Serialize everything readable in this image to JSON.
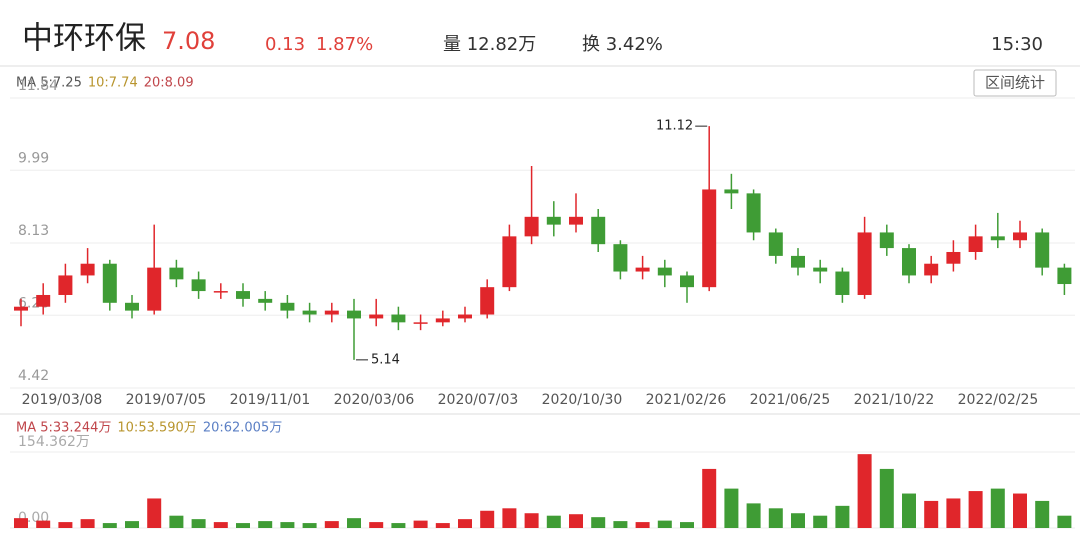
{
  "header": {
    "name": "中环环保",
    "price": "7.08",
    "change": "0.13",
    "change_pct": "1.87%",
    "volume": "量 12.82万",
    "turnover": "换 3.42%",
    "time": "15:30",
    "button": "区间统计"
  },
  "chart_data": [
    {
      "type": "candlestick",
      "legend": [
        "MA 5:7.25",
        "10:7.74",
        "20:8.09"
      ],
      "legend_colors": [
        "#555555",
        "#b8952e",
        "#c0464b"
      ],
      "up_color": "#e0262b",
      "down_color": "#3f9c35",
      "ylim": [
        4.42,
        11.84
      ],
      "yticks": [
        4.42,
        6.28,
        8.13,
        9.99,
        11.84
      ],
      "xlabels": [
        "2019/03/08",
        "2019/07/05",
        "2019/11/01",
        "2020/03/06",
        "2020/07/03",
        "2020/10/30",
        "2021/02/26",
        "2021/06/25",
        "2021/10/22",
        "2022/02/25"
      ],
      "open": [
        6.4,
        6.5,
        6.8,
        7.3,
        7.6,
        6.6,
        6.4,
        7.5,
        7.2,
        6.9,
        6.9,
        6.7,
        6.6,
        6.4,
        6.3,
        6.4,
        6.2,
        6.3,
        6.1,
        6.1,
        6.2,
        6.3,
        7.0,
        8.3,
        8.8,
        8.6,
        8.8,
        8.1,
        7.4,
        7.5,
        7.3,
        7.0,
        9.5,
        9.4,
        8.4,
        7.8,
        7.5,
        7.4,
        6.8,
        8.4,
        8.0,
        7.3,
        7.6,
        7.9,
        8.3,
        8.2,
        8.4,
        7.5
      ],
      "high": [
        6.7,
        7.1,
        7.6,
        8.0,
        7.7,
        6.8,
        8.6,
        7.7,
        7.4,
        7.1,
        7.1,
        6.9,
        6.8,
        6.6,
        6.6,
        6.7,
        6.7,
        6.5,
        6.3,
        6.4,
        6.5,
        7.2,
        8.6,
        10.1,
        9.2,
        9.4,
        9.0,
        8.2,
        7.8,
        7.7,
        7.4,
        11.12,
        9.9,
        9.5,
        8.5,
        8.0,
        7.7,
        7.5,
        8.8,
        8.6,
        8.1,
        7.8,
        8.2,
        8.6,
        8.9,
        8.7,
        8.5,
        7.6
      ],
      "low": [
        6.0,
        6.3,
        6.6,
        7.1,
        6.4,
        6.2,
        6.3,
        7.0,
        6.7,
        6.7,
        6.5,
        6.4,
        6.2,
        6.1,
        6.1,
        5.14,
        6.0,
        5.9,
        5.9,
        6.0,
        6.1,
        6.2,
        6.9,
        8.1,
        8.3,
        8.4,
        7.9,
        7.2,
        7.2,
        7.0,
        6.6,
        6.9,
        9.0,
        8.2,
        7.6,
        7.3,
        7.1,
        6.6,
        6.7,
        7.8,
        7.1,
        7.1,
        7.4,
        7.7,
        8.0,
        8.0,
        7.3,
        6.8
      ],
      "close": [
        6.5,
        6.8,
        7.3,
        7.6,
        6.6,
        6.4,
        7.5,
        7.2,
        6.9,
        6.9,
        6.7,
        6.6,
        6.4,
        6.3,
        6.4,
        6.2,
        6.3,
        6.1,
        6.1,
        6.2,
        6.3,
        7.0,
        8.3,
        8.8,
        8.6,
        8.8,
        8.1,
        7.4,
        7.5,
        7.3,
        7.0,
        9.5,
        9.4,
        8.4,
        7.8,
        7.5,
        7.4,
        6.8,
        8.4,
        8.0,
        7.3,
        7.6,
        7.9,
        8.3,
        8.2,
        8.4,
        7.5,
        7.08
      ]
    },
    {
      "type": "bar",
      "legend": [
        "MA 5:33.244万",
        "10:53.590万",
        "20:62.005万"
      ],
      "legend_colors": [
        "#c0464b",
        "#b8952e",
        "#5b7fc4"
      ],
      "ylim": [
        0,
        154.362
      ],
      "yticks": [
        {
          "value": 0,
          "label": "0.00"
        },
        {
          "value": 154.362,
          "label": "154.362万"
        }
      ],
      "values": [
        20,
        15,
        12,
        18,
        10,
        14,
        60,
        25,
        18,
        12,
        10,
        14,
        12,
        10,
        14,
        20,
        12,
        10,
        15,
        10,
        18,
        35,
        40,
        30,
        25,
        28,
        22,
        14,
        12,
        15,
        12,
        120,
        80,
        50,
        40,
        30,
        25,
        45,
        150,
        120,
        70,
        55,
        60,
        75,
        80,
        70,
        55,
        25
      ]
    }
  ]
}
